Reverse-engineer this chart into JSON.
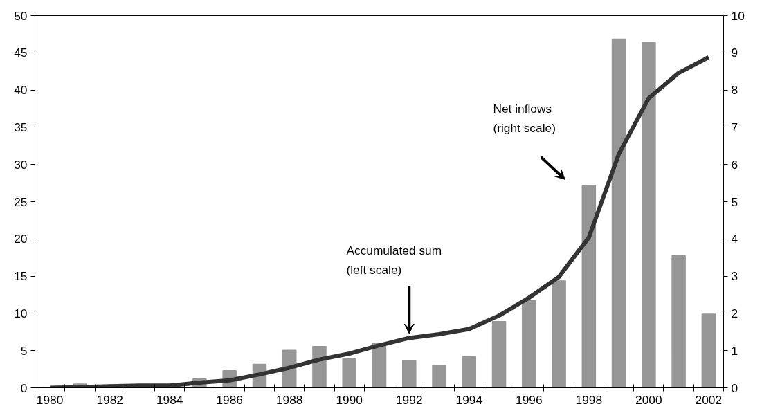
{
  "chart_data": {
    "type": "bar",
    "categories": [
      "1980",
      null,
      "1982",
      null,
      "1984",
      null,
      "1986",
      null,
      "1988",
      null,
      "1990",
      null,
      "1992",
      null,
      "1994",
      null,
      "1996",
      null,
      "1998",
      null,
      "2000",
      null,
      "2002"
    ],
    "series": [
      {
        "axis": "y2",
        "color": "#969696",
        "values": [
          0,
          0.1,
          0,
          null,
          null,
          0.24,
          0.46,
          0.63,
          1.01,
          1.11,
          0.78,
          1.19,
          0.74,
          0.6,
          0.83,
          1.78,
          2.34,
          2.87,
          5.44,
          9.37,
          9.29,
          3.55,
          1.98
        ]
      },
      {
        "type": "line",
        "color": "#333333",
        "values": [
          0,
          0.1,
          0.2,
          0.3,
          0.3,
          0.7,
          1.0,
          1.8,
          2.7,
          3.8,
          4.6,
          5.7,
          6.7,
          7.2,
          7.9,
          9.7,
          12.1,
          14.9,
          20.2,
          31.4,
          38.9,
          42.3,
          44.4
        ]
      }
    ],
    "ylim": [
      0,
      50
    ],
    "yticks": [
      0,
      5,
      10,
      15,
      20,
      25,
      30,
      35,
      40,
      45,
      50
    ],
    "y2lim": [
      0,
      10
    ],
    "y2ticks": [
      0,
      1,
      2,
      3,
      4,
      5,
      6,
      7,
      8,
      9,
      10
    ],
    "grid": false,
    "marker": "none",
    "line_style": "solid",
    "annotations": [
      {
        "text": "Accumulated sum\n(left scale)",
        "x": "1992",
        "y": 6.9
      },
      "Net inflows\n(right scale)"
    ]
  }
}
